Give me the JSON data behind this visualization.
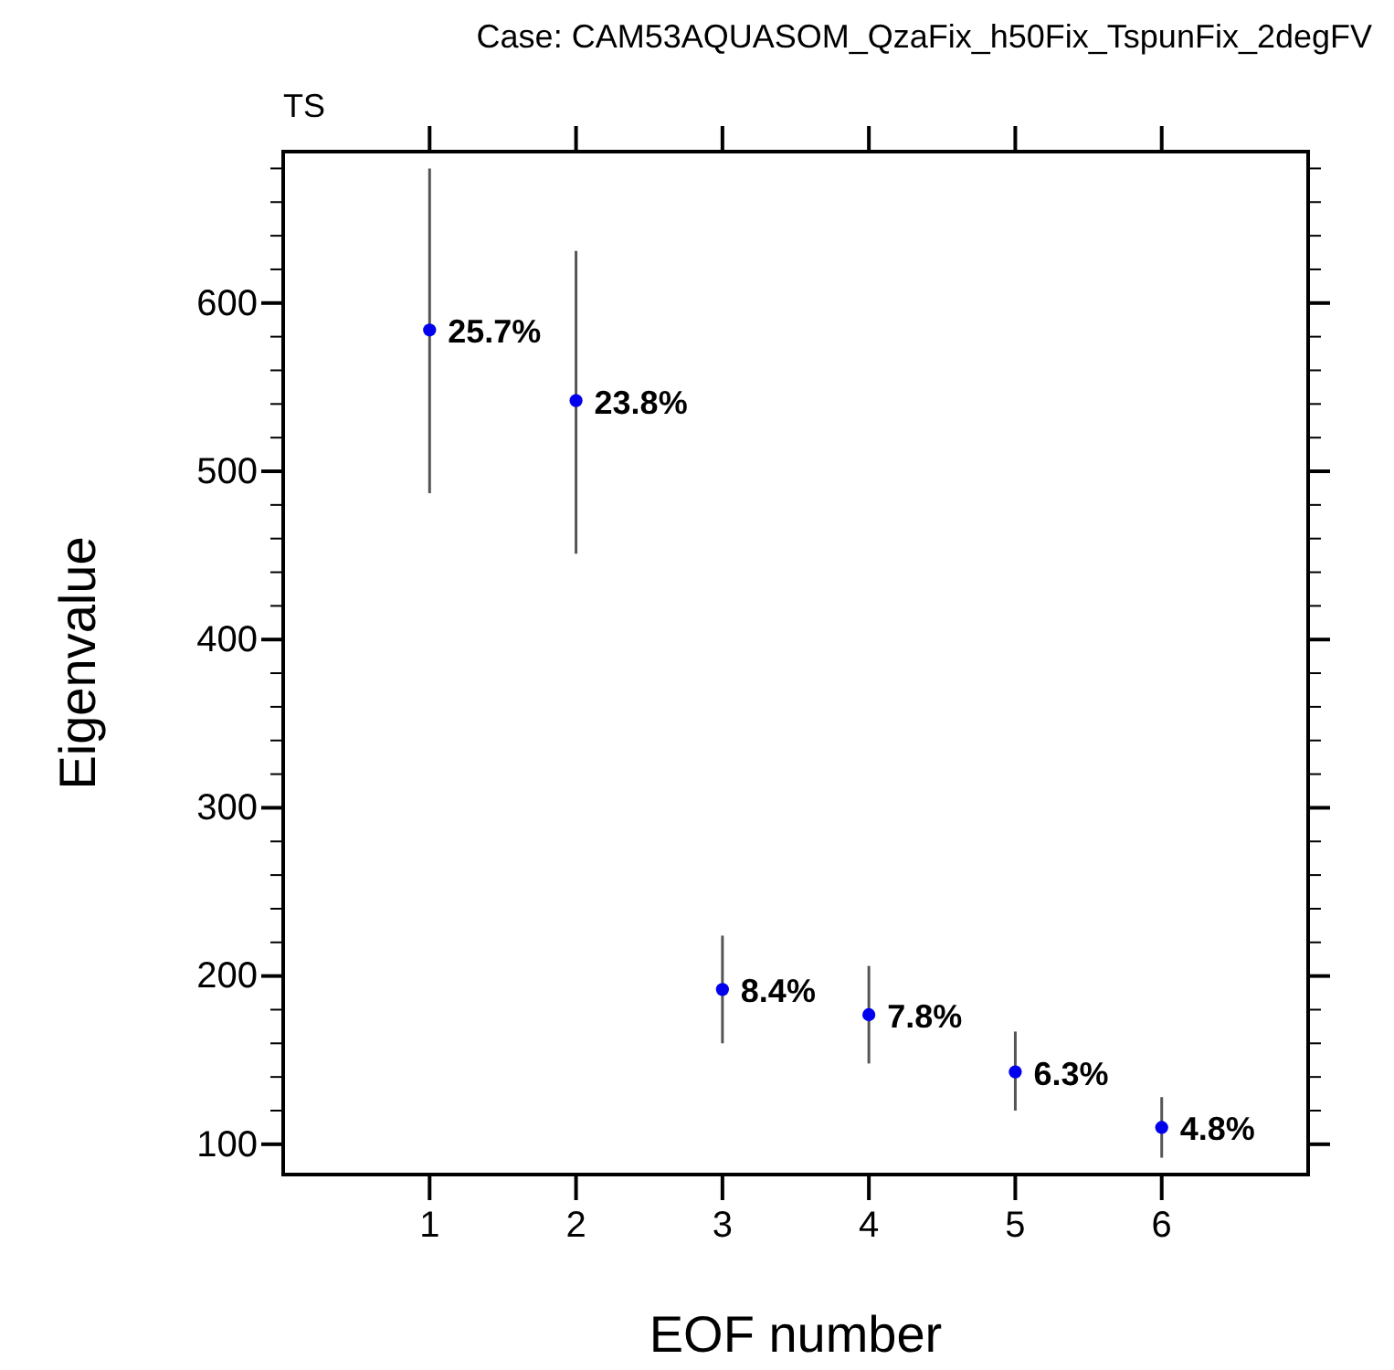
{
  "chart_data": {
    "type": "scatter",
    "title": "Case: CAM53AQUASOM_QzaFix_h50Fix_TspunFix_2degFV",
    "subtitle": "TS",
    "xlabel": "EOF number",
    "ylabel": "Eigenvalue",
    "x": [
      1,
      2,
      3,
      4,
      5,
      6
    ],
    "values": [
      584,
      542,
      192,
      177,
      143,
      110
    ],
    "errors": [
      [
        487,
        680
      ],
      [
        451,
        631
      ],
      [
        160,
        224
      ],
      [
        148,
        206
      ],
      [
        120,
        167
      ],
      [
        92,
        128
      ]
    ],
    "annotations": [
      {
        "text": "25.7%",
        "x": 1,
        "y": 584
      },
      {
        "text": "23.8%",
        "x": 2,
        "y": 542
      },
      {
        "text": "8.4%",
        "x": 3,
        "y": 192
      },
      {
        "text": "7.8%",
        "x": 4,
        "y": 177
      },
      {
        "text": "6.3%",
        "x": 5,
        "y": 143
      },
      {
        "text": "4.8%",
        "x": 6,
        "y": 110
      }
    ],
    "color": "#0000ee",
    "marker": "circle",
    "xlim": [
      0,
      7
    ],
    "xticks": [
      1,
      2,
      3,
      4,
      5,
      6
    ],
    "ylim": [
      82,
      690
    ],
    "yticks": [
      100,
      {
        "value": 120,
        "label": null
      },
      {
        "value": 140,
        "label": null
      },
      {
        "value": 160,
        "label": null
      },
      {
        "value": 180,
        "label": null
      },
      200,
      {
        "value": 220,
        "label": null
      },
      {
        "value": 240,
        "label": null
      },
      {
        "value": 260,
        "label": null
      },
      {
        "value": 280,
        "label": null
      },
      300,
      {
        "value": 320,
        "label": null
      },
      {
        "value": 340,
        "label": null
      },
      {
        "value": 360,
        "label": null
      },
      {
        "value": 380,
        "label": null
      },
      400,
      {
        "value": 420,
        "label": null
      },
      {
        "value": 440,
        "label": null
      },
      {
        "value": 460,
        "label": null
      },
      {
        "value": 480,
        "label": null
      },
      500,
      {
        "value": 520,
        "label": null
      },
      {
        "value": 540,
        "label": null
      },
      {
        "value": 560,
        "label": null
      },
      {
        "value": 580,
        "label": null
      },
      600,
      {
        "value": 620,
        "label": null
      },
      {
        "value": 640,
        "label": null
      },
      {
        "value": 660,
        "label": null
      },
      {
        "value": 680,
        "label": null
      }
    ],
    "grid": false
  }
}
